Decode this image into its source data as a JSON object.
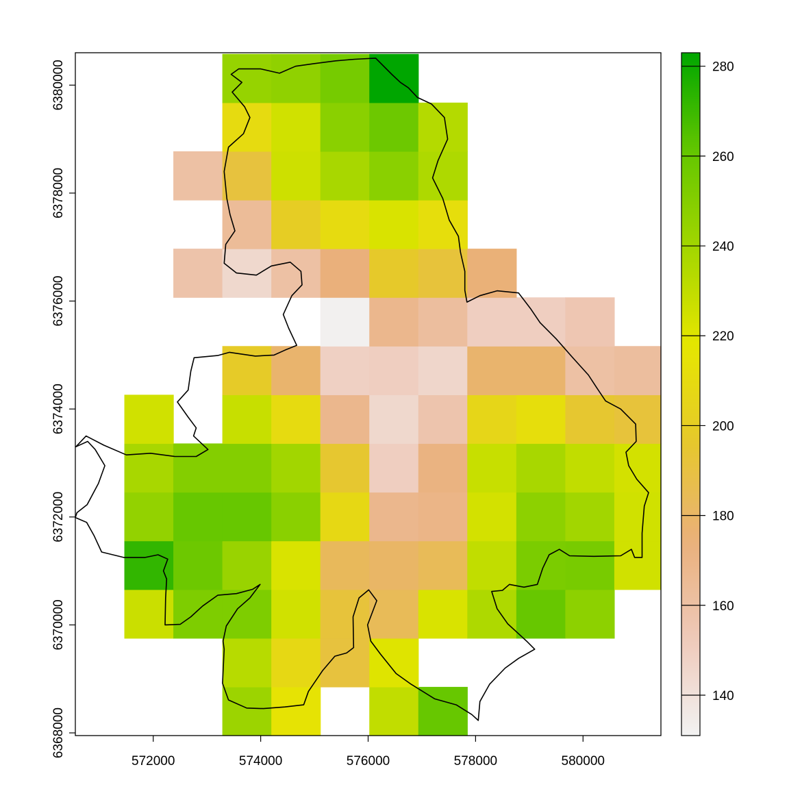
{
  "chart_data": {
    "type": "heatmap",
    "title": "",
    "xlabel": "",
    "ylabel": "",
    "x_ticks": [
      572000,
      574000,
      576000,
      578000,
      580000
    ],
    "y_ticks": [
      6368000,
      6370000,
      6372000,
      6374000,
      6376000,
      6378000,
      6380000
    ],
    "xlim": [
      570550,
      581450
    ],
    "ylim": [
      6367950,
      6380600
    ],
    "grid": false,
    "legend": "right",
    "colorbar": {
      "min": 131,
      "max": 283,
      "ticks": [
        140,
        160,
        180,
        200,
        220,
        240,
        260,
        280
      ],
      "palette": [
        "#f2f2f2",
        "#eec9b9",
        "#eab07a",
        "#e6c82c",
        "#e6e600",
        "#a3d600",
        "#63c600",
        "#00a600"
      ]
    },
    "grid_origin": [
      570550,
      6367950
    ],
    "cell_size": [
      912,
      902
    ],
    "cells": [
      [
        null,
        null,
        null,
        242,
        216,
        null,
        230,
        260,
        null,
        null,
        null,
        null
      ],
      [
        null,
        null,
        null,
        233,
        208,
        191,
        220,
        null,
        null,
        null,
        null,
        null
      ],
      [
        null,
        227,
        252,
        252,
        225,
        192,
        184,
        222,
        236,
        260,
        247,
        null
      ],
      [
        null,
        272,
        258,
        243,
        222,
        183,
        180,
        184,
        230,
        253,
        254,
        225,
        184
      ],
      [
        null,
        245,
        260,
        260,
        248,
        208,
        168,
        170,
        224,
        247,
        240,
        225,
        200
      ],
      [
        null,
        238,
        250,
        250,
        240,
        195,
        150,
        172,
        228,
        238,
        230,
        224,
        190
      ],
      [
        null,
        225,
        null,
        228,
        210,
        168,
        145,
        157,
        206,
        212,
        195,
        192,
        168
      ],
      [
        null,
        null,
        null,
        198,
        178,
        149,
        150,
        146,
        178,
        178,
        160,
        162,
        null
      ],
      [
        null,
        null,
        null,
        null,
        null,
        132,
        168,
        162,
        150,
        150,
        155,
        null,
        null
      ],
      [
        null,
        null,
        158,
        145,
        160,
        174,
        197,
        192,
        175,
        null,
        null,
        null,
        null
      ],
      [
        null,
        null,
        null,
        164,
        200,
        210,
        222,
        212,
        null,
        null,
        null,
        null,
        null
      ],
      [
        null,
        null,
        160,
        191,
        226,
        238,
        248,
        236,
        null,
        null,
        null,
        null,
        null
      ],
      [
        null,
        null,
        null,
        210,
        225,
        248,
        258,
        234,
        null,
        null,
        null,
        null,
        null
      ],
      [
        null,
        null,
        null,
        244,
        246,
        255,
        283,
        null,
        null,
        null,
        null,
        null,
        null
      ]
    ],
    "boundary": [
      [
        576140,
        6380500
      ],
      [
        576440,
        6380200
      ],
      [
        576600,
        6380050
      ],
      [
        576750,
        6379950
      ],
      [
        576920,
        6379770
      ],
      [
        577180,
        6379650
      ],
      [
        577420,
        6379400
      ],
      [
        577480,
        6379000
      ],
      [
        577300,
        6378600
      ],
      [
        577200,
        6378280
      ],
      [
        577390,
        6377900
      ],
      [
        577510,
        6377500
      ],
      [
        577680,
        6377200
      ],
      [
        577720,
        6376900
      ],
      [
        577800,
        6376550
      ],
      [
        577800,
        6376200
      ],
      [
        577840,
        6375980
      ],
      [
        578080,
        6376100
      ],
      [
        578400,
        6376190
      ],
      [
        578800,
        6376150
      ],
      [
        579030,
        6375850
      ],
      [
        579200,
        6375600
      ],
      [
        579500,
        6375300
      ],
      [
        579800,
        6374960
      ],
      [
        580100,
        6374630
      ],
      [
        580250,
        6374400
      ],
      [
        580420,
        6374150
      ],
      [
        580700,
        6374000
      ],
      [
        580980,
        6373720
      ],
      [
        580990,
        6373400
      ],
      [
        580800,
        6373200
      ],
      [
        580850,
        6372950
      ],
      [
        581000,
        6372700
      ],
      [
        581220,
        6372450
      ],
      [
        581140,
        6372200
      ],
      [
        581100,
        6371700
      ],
      [
        581100,
        6371250
      ],
      [
        580960,
        6371250
      ],
      [
        580900,
        6371400
      ],
      [
        580700,
        6371280
      ],
      [
        580200,
        6371270
      ],
      [
        579750,
        6371280
      ],
      [
        579560,
        6371400
      ],
      [
        579370,
        6371300
      ],
      [
        579250,
        6371050
      ],
      [
        579150,
        6370750
      ],
      [
        578900,
        6370700
      ],
      [
        578630,
        6370750
      ],
      [
        578500,
        6370640
      ],
      [
        578300,
        6370620
      ],
      [
        578400,
        6370300
      ],
      [
        578600,
        6370020
      ],
      [
        578950,
        6369700
      ],
      [
        579100,
        6369550
      ],
      [
        578800,
        6369380
      ],
      [
        578550,
        6369200
      ],
      [
        578260,
        6368900
      ],
      [
        578080,
        6368580
      ],
      [
        578050,
        6368230
      ],
      [
        577930,
        6368340
      ],
      [
        577640,
        6368520
      ],
      [
        577240,
        6368630
      ],
      [
        576800,
        6368900
      ],
      [
        576520,
        6369100
      ],
      [
        576230,
        6369460
      ],
      [
        576050,
        6369700
      ],
      [
        575990,
        6370000
      ],
      [
        576160,
        6370450
      ],
      [
        576010,
        6370650
      ],
      [
        575830,
        6370500
      ],
      [
        575720,
        6370150
      ],
      [
        575730,
        6369580
      ],
      [
        575600,
        6369480
      ],
      [
        575380,
        6369420
      ],
      [
        575150,
        6369150
      ],
      [
        574890,
        6368770
      ],
      [
        574800,
        6368520
      ],
      [
        574450,
        6368480
      ],
      [
        574050,
        6368450
      ],
      [
        573740,
        6368460
      ],
      [
        573400,
        6368610
      ],
      [
        573290,
        6368920
      ],
      [
        573320,
        6369550
      ],
      [
        573300,
        6369700
      ],
      [
        573360,
        6369980
      ],
      [
        573570,
        6370300
      ],
      [
        573800,
        6370500
      ],
      [
        573990,
        6370750
      ],
      [
        573850,
        6370660
      ],
      [
        573550,
        6370580
      ],
      [
        573200,
        6370550
      ],
      [
        572920,
        6370350
      ],
      [
        572700,
        6370150
      ],
      [
        572500,
        6370010
      ],
      [
        572220,
        6370000
      ],
      [
        572230,
        6370500
      ],
      [
        572250,
        6370850
      ],
      [
        572190,
        6371000
      ],
      [
        572270,
        6371220
      ],
      [
        572090,
        6371300
      ],
      [
        571850,
        6371250
      ],
      [
        571450,
        6371250
      ],
      [
        571040,
        6371350
      ],
      [
        570900,
        6371650
      ],
      [
        570760,
        6371900
      ],
      [
        570550,
        6371990
      ],
      [
        570580,
        6372080
      ],
      [
        570770,
        6372230
      ],
      [
        570980,
        6372620
      ],
      [
        571100,
        6372950
      ],
      [
        570920,
        6373250
      ],
      [
        570780,
        6373400
      ],
      [
        570560,
        6373300
      ],
      [
        570750,
        6373500
      ],
      [
        571080,
        6373330
      ],
      [
        571500,
        6373150
      ],
      [
        571950,
        6373180
      ],
      [
        572400,
        6373120
      ],
      [
        572800,
        6373120
      ],
      [
        573020,
        6373250
      ],
      [
        572750,
        6373500
      ],
      [
        572800,
        6373650
      ],
      [
        572650,
        6373850
      ],
      [
        572450,
        6374130
      ],
      [
        572650,
        6374350
      ],
      [
        572700,
        6374700
      ],
      [
        572760,
        6374950
      ],
      [
        573200,
        6374990
      ],
      [
        573420,
        6375050
      ],
      [
        573900,
        6374980
      ],
      [
        574250,
        6375000
      ],
      [
        574450,
        6375090
      ],
      [
        574670,
        6375180
      ],
      [
        574520,
        6375500
      ],
      [
        574420,
        6375750
      ],
      [
        574580,
        6376100
      ],
      [
        574770,
        6376300
      ],
      [
        574750,
        6376550
      ],
      [
        574550,
        6376720
      ],
      [
        574200,
        6376650
      ],
      [
        573920,
        6376480
      ],
      [
        573550,
        6376520
      ],
      [
        573320,
        6376700
      ],
      [
        573350,
        6377050
      ],
      [
        573520,
        6377300
      ],
      [
        573430,
        6377600
      ],
      [
        573370,
        6377900
      ],
      [
        573320,
        6378400
      ],
      [
        573400,
        6378850
      ],
      [
        573680,
        6379100
      ],
      [
        573800,
        6379400
      ],
      [
        573700,
        6379600
      ],
      [
        573470,
        6379870
      ],
      [
        573650,
        6380050
      ],
      [
        573450,
        6380200
      ],
      [
        573590,
        6380300
      ],
      [
        574000,
        6380300
      ],
      [
        574350,
        6380220
      ],
      [
        574650,
        6380350
      ],
      [
        575000,
        6380400
      ],
      [
        575400,
        6380450
      ],
      [
        575750,
        6380480
      ],
      [
        576140,
        6380500
      ]
    ]
  }
}
